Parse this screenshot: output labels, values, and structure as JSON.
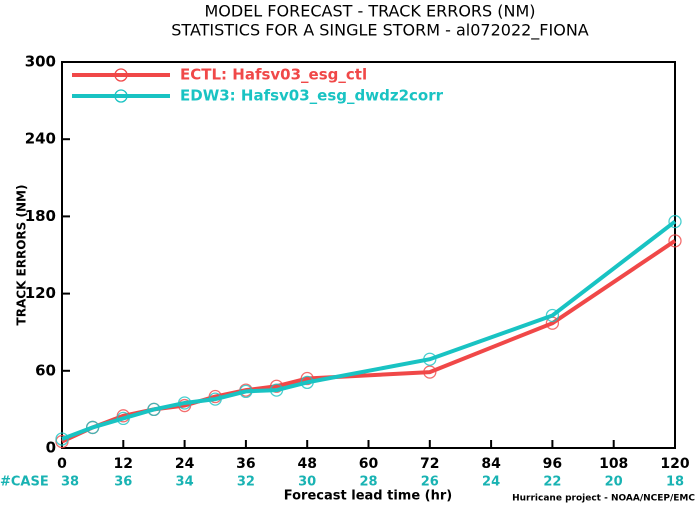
{
  "chart_data": {
    "type": "line",
    "title": "MODEL FORECAST - TRACK ERRORS (NM)",
    "subtitle": "STATISTICS FOR A SINGLE STORM - al072022_FIONA",
    "x_label": "Forecast lead time (hr)",
    "y_label": "TRACK ERRORS (NM)",
    "footer": "Hurricane project - NOAA/NCEP/EMC",
    "x": [
      0,
      6,
      12,
      18,
      24,
      30,
      36,
      42,
      48,
      72,
      96,
      120
    ],
    "series": [
      {
        "name": "ECTL: Hafsv03_esg_ctl",
        "color": "#f04848",
        "values": [
          5,
          16,
          25,
          30,
          33,
          40,
          45,
          48,
          54,
          59,
          97,
          161
        ]
      },
      {
        "name": "EDW3: Hafsv03_esg_dwdz2corr",
        "color": "#19c3c3",
        "values": [
          7,
          16,
          23,
          30,
          35,
          38,
          44,
          45,
          51,
          69,
          103,
          176
        ]
      }
    ],
    "xlim": [
      0,
      120
    ],
    "xticks": [
      0,
      12,
      24,
      36,
      48,
      60,
      72,
      84,
      96,
      108,
      120
    ],
    "ylim": [
      0,
      300
    ],
    "yticks": [
      0,
      60,
      120,
      180,
      240,
      300
    ],
    "cases": {
      "label": "#CASE",
      "color": "#19b3b3",
      "values": [
        38,
        36,
        34,
        32,
        30,
        28,
        26,
        24,
        22,
        20,
        18
      ]
    },
    "legend": "upper-left"
  }
}
